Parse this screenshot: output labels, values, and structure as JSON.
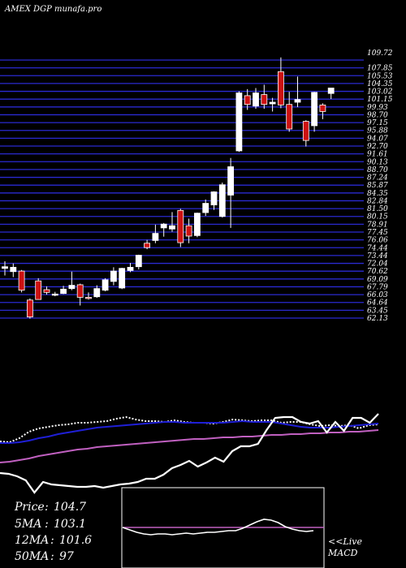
{
  "chart_data": {
    "type": "candlestick",
    "title": "AMEX  DGP munafa.pro",
    "ylim": [
      62.5,
      109.72
    ],
    "grid": true,
    "y_ticks": [
      "109.72",
      "107.85",
      "105.53",
      "104.35",
      "103.02",
      "101.15",
      "99.93",
      "98.70",
      "97.15",
      "95.88",
      "94.07",
      "92.70",
      "91.61",
      "90.13",
      "88.70",
      "87.24",
      "85.87",
      "84.35",
      "82.84",
      "81.50",
      "80.15",
      "78.91",
      "77.45",
      "76.06",
      "74.44",
      "73.44",
      "72.04",
      "70.62",
      "69.09",
      "67.79",
      "66.03",
      "64.64",
      "63.45",
      "62.13"
    ],
    "candles": [
      {
        "o": 71.6,
        "h": 72.9,
        "l": 70.3,
        "c": 71.9
      },
      {
        "o": 71.0,
        "h": 72.5,
        "l": 70.0,
        "c": 71.8
      },
      {
        "o": 71.1,
        "h": 71.3,
        "l": 67.2,
        "c": 67.6
      },
      {
        "o": 65.8,
        "h": 66.1,
        "l": 62.4,
        "c": 62.7
      },
      {
        "o": 69.3,
        "h": 69.8,
        "l": 65.9,
        "c": 65.9
      },
      {
        "o": 67.7,
        "h": 68.3,
        "l": 66.8,
        "c": 67.2
      },
      {
        "o": 66.8,
        "h": 67.3,
        "l": 66.5,
        "c": 66.9
      },
      {
        "o": 67.0,
        "h": 68.4,
        "l": 66.9,
        "c": 67.8
      },
      {
        "o": 67.9,
        "h": 71.0,
        "l": 67.6,
        "c": 68.5
      },
      {
        "o": 68.6,
        "h": 68.8,
        "l": 64.8,
        "c": 66.3
      },
      {
        "o": 66.3,
        "h": 67.2,
        "l": 65.9,
        "c": 66.2
      },
      {
        "o": 66.4,
        "h": 68.5,
        "l": 66.2,
        "c": 67.9
      },
      {
        "o": 67.6,
        "h": 69.8,
        "l": 67.4,
        "c": 69.5
      },
      {
        "o": 69.2,
        "h": 71.8,
        "l": 68.5,
        "c": 71.1
      },
      {
        "o": 68.0,
        "h": 71.7,
        "l": 67.8,
        "c": 71.6
      },
      {
        "o": 71.2,
        "h": 72.6,
        "l": 70.9,
        "c": 71.8
      },
      {
        "o": 71.9,
        "h": 74.1,
        "l": 71.4,
        "c": 74.0
      },
      {
        "o": 76.2,
        "h": 76.8,
        "l": 75.1,
        "c": 75.4
      },
      {
        "o": 76.7,
        "h": 79.6,
        "l": 76.2,
        "c": 78.0
      },
      {
        "o": 79.0,
        "h": 79.9,
        "l": 77.4,
        "c": 79.7
      },
      {
        "o": 78.8,
        "h": 81.9,
        "l": 78.3,
        "c": 79.4
      },
      {
        "o": 82.2,
        "h": 82.5,
        "l": 75.5,
        "c": 76.3
      },
      {
        "o": 79.4,
        "h": 80.7,
        "l": 76.2,
        "c": 77.5
      },
      {
        "o": 77.6,
        "h": 81.8,
        "l": 77.3,
        "c": 81.7
      },
      {
        "o": 81.8,
        "h": 84.2,
        "l": 81.2,
        "c": 83.5
      },
      {
        "o": 83.2,
        "h": 85.7,
        "l": 82.3,
        "c": 85.6
      },
      {
        "o": 81.1,
        "h": 87.3,
        "l": 80.9,
        "c": 86.9
      },
      {
        "o": 85.0,
        "h": 91.8,
        "l": 79.0,
        "c": 90.2
      },
      {
        "o": 93.1,
        "h": 104.0,
        "l": 92.9,
        "c": 103.7
      },
      {
        "o": 103.2,
        "h": 104.4,
        "l": 100.6,
        "c": 101.6
      },
      {
        "o": 101.3,
        "h": 104.6,
        "l": 100.8,
        "c": 103.7
      },
      {
        "o": 103.4,
        "h": 105.2,
        "l": 100.8,
        "c": 101.6
      },
      {
        "o": 101.7,
        "h": 102.8,
        "l": 100.3,
        "c": 102.0
      },
      {
        "o": 107.6,
        "h": 110.2,
        "l": 100.9,
        "c": 101.5
      },
      {
        "o": 101.6,
        "h": 103.9,
        "l": 96.6,
        "c": 97.1
      },
      {
        "o": 102.0,
        "h": 106.7,
        "l": 101.1,
        "c": 102.5
      },
      {
        "o": 98.5,
        "h": 98.7,
        "l": 93.9,
        "c": 95.0
      },
      {
        "o": 97.7,
        "h": 103.9,
        "l": 96.6,
        "c": 103.8
      },
      {
        "o": 101.5,
        "h": 101.8,
        "l": 98.9,
        "c": 100.3
      },
      {
        "o": 103.6,
        "h": 104.5,
        "l": 102.6,
        "c": 104.6
      }
    ],
    "indicator_lines": [
      {
        "name": "",
        "color": "#ffffff",
        "values": [
          544,
          545,
          540,
          532,
          528,
          526,
          524,
          523,
          521,
          521,
          520,
          519,
          516,
          514,
          517,
          519,
          519,
          520,
          518,
          520,
          521,
          521,
          522,
          520,
          517,
          518,
          519,
          518,
          518,
          521,
          520,
          520,
          523,
          525,
          524,
          525,
          524,
          528,
          524,
          523
        ]
      },
      {
        "name": "",
        "color": "#1f1fd6",
        "values": [
          546,
          546,
          545,
          543,
          540,
          538,
          535,
          533,
          531,
          529,
          527,
          526,
          525,
          524,
          523,
          522,
          521,
          520,
          520,
          521,
          521,
          521,
          521,
          521,
          520,
          519,
          520,
          520,
          520,
          522,
          524,
          526,
          527,
          527,
          527,
          526,
          525,
          524,
          523,
          522
        ]
      },
      {
        "name": "",
        "color": "#c060c0",
        "values": [
          570,
          569,
          567,
          565,
          562,
          560,
          558,
          556,
          554,
          553,
          551,
          550,
          549,
          548,
          547,
          546,
          545,
          544,
          543,
          542,
          541,
          541,
          540,
          539,
          539,
          538,
          538,
          537,
          536,
          536,
          535,
          535,
          534,
          534,
          533,
          533,
          532,
          532,
          531,
          530
        ]
      },
      {
        "name": "",
        "color": "#ffffff",
        "values": [
          583,
          584,
          587,
          592,
          607,
          594,
          597,
          598,
          599,
          600,
          600,
          599,
          601,
          599,
          597,
          596,
          594,
          590,
          590,
          585,
          577,
          573,
          568,
          575,
          570,
          564,
          569,
          556,
          550,
          550,
          547,
          530,
          515,
          514,
          514,
          520,
          522,
          519,
          533,
          520,
          531,
          515,
          515,
          521,
          510
        ]
      }
    ],
    "macd_inset": {
      "signal": [
        650,
        650,
        650,
        650,
        650,
        650,
        650,
        650,
        650,
        650,
        650,
        650,
        650,
        650,
        650,
        650,
        650,
        650,
        650,
        650,
        650,
        650,
        650,
        650,
        650,
        650,
        650,
        650
      ],
      "macd": [
        650,
        653,
        656,
        658,
        659,
        658,
        658,
        659,
        658,
        657,
        658,
        657,
        656,
        656,
        655,
        654,
        654,
        651,
        647,
        643,
        640,
        641,
        644,
        649,
        652,
        654,
        655,
        654
      ]
    }
  },
  "stats": {
    "price_label": "Price",
    "price_value": "104.7",
    "ma5_label": "5MA",
    "ma5_value": "103.1",
    "ma12_label": "12MA",
    "ma12_value": "101.6",
    "ma50_label": "50MA",
    "ma50_value": "97"
  },
  "macd_label_line1": "<<Live",
  "macd_label_line2": "MACD"
}
